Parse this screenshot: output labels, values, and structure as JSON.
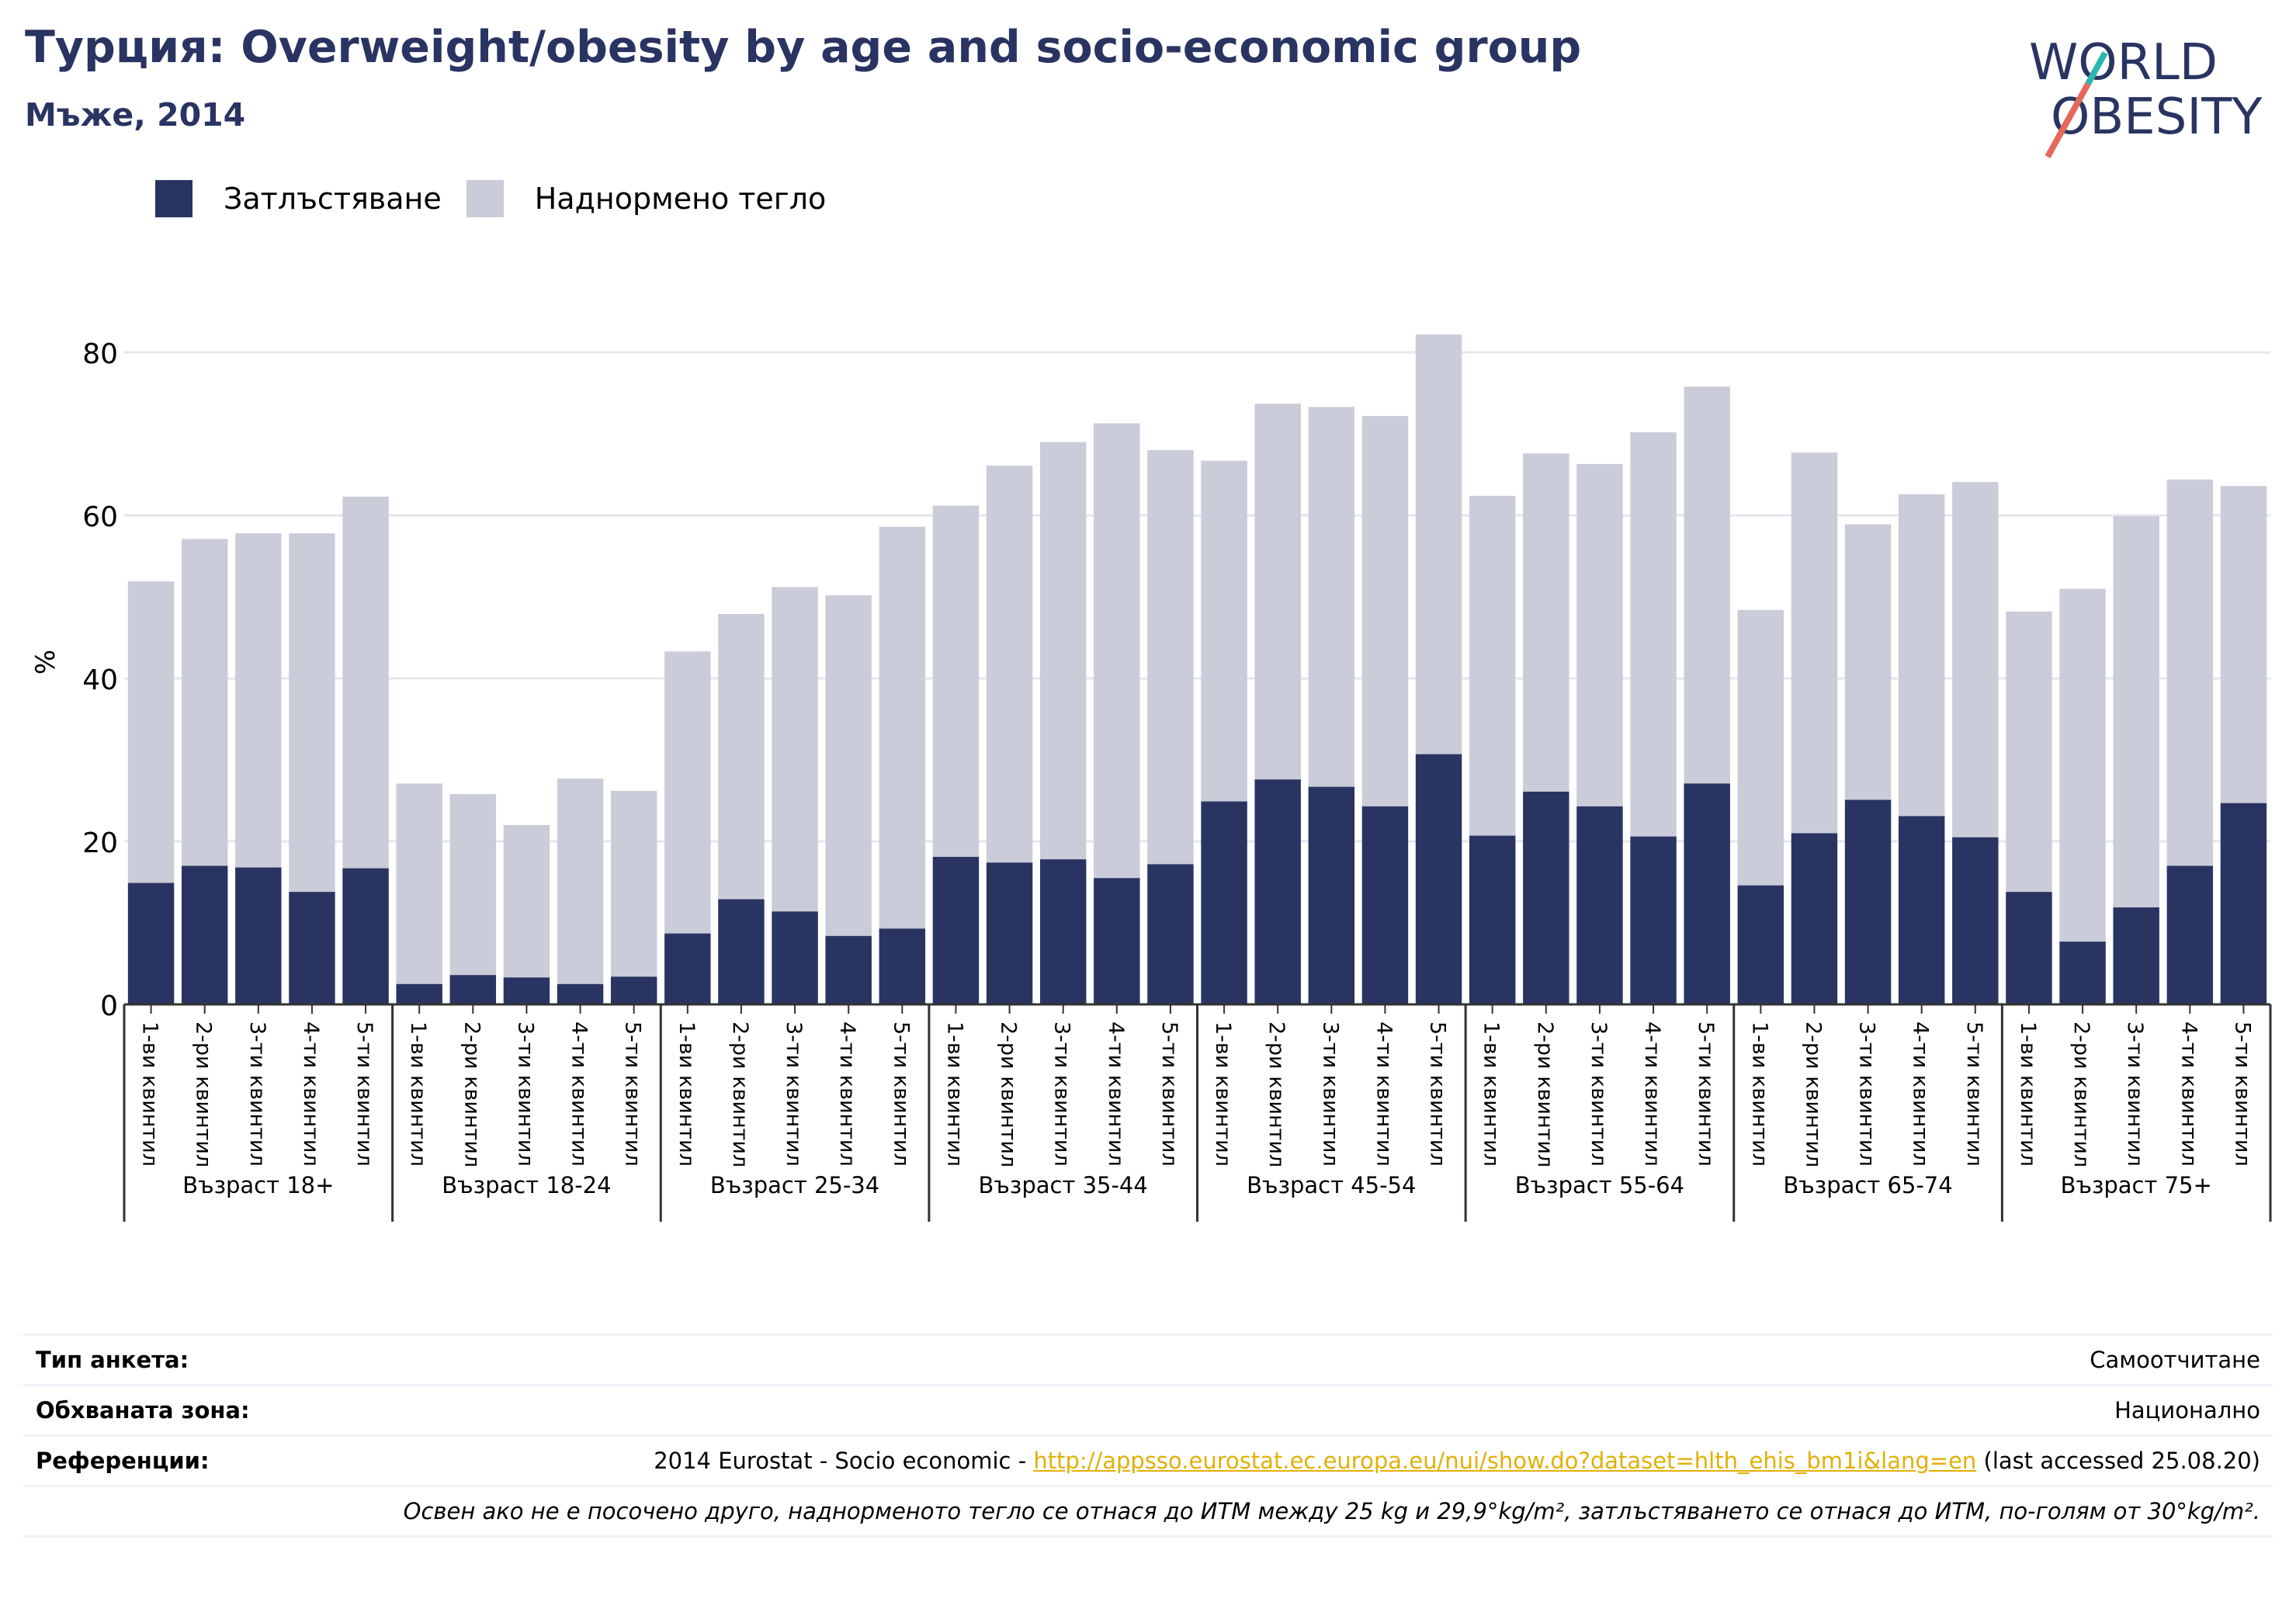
{
  "header": {
    "title": "Турция: Overweight/obesity by age and socio-economic group",
    "subtitle": "Мъже, 2014"
  },
  "logo": {
    "line1": "WORLD",
    "line2": "OBESITY"
  },
  "legend": {
    "items": [
      {
        "label": "Затлъстяване",
        "color": "#293462"
      },
      {
        "label": "Наднормено тегло",
        "color": "#cbccd9"
      }
    ]
  },
  "colors": {
    "obesity": "#293462",
    "overweight": "#cbccd9",
    "grid": "#e6e6ef",
    "axis": "#333333",
    "accent_red": "#e4685c",
    "accent_teal": "#2bb6b0",
    "link": "#e2b008"
  },
  "chart_data": {
    "type": "bar",
    "stacked": true,
    "ylabel": "%",
    "ylim": [
      0,
      84
    ],
    "yticks": [
      0,
      20,
      40,
      60,
      80
    ],
    "grid": true,
    "legend_position": "top-left",
    "quintiles": [
      "1-ви квинтил",
      "2-ри квинтил",
      "3-ти квинтил",
      "4-ти квинтил",
      "5-ти квинтил"
    ],
    "groups": [
      "Възраст 18+",
      "Възраст 18-24",
      "Възраст 25-34",
      "Възраст 35-44",
      "Възраст 45-54",
      "Възраст 55-64",
      "Възраст 65-74",
      "Възраст 75+"
    ],
    "series": [
      {
        "name": "Затлъстяване",
        "values": [
          [
            14.9,
            17.0,
            16.8,
            13.8,
            16.7
          ],
          [
            2.5,
            3.6,
            3.3,
            2.5,
            3.4
          ],
          [
            8.7,
            12.9,
            11.4,
            8.4,
            9.3
          ],
          [
            18.1,
            17.4,
            17.8,
            15.5,
            17.2
          ],
          [
            24.9,
            27.6,
            26.7,
            24.3,
            30.7
          ],
          [
            20.7,
            26.1,
            24.3,
            20.6,
            27.1
          ],
          [
            14.6,
            21.0,
            25.1,
            23.1,
            20.5
          ],
          [
            13.8,
            7.7,
            11.9,
            17.0,
            24.7
          ]
        ]
      },
      {
        "name": "Наднормено тегло",
        "values": [
          [
            37.0,
            40.1,
            41.0,
            44.0,
            45.6
          ],
          [
            24.6,
            22.2,
            18.7,
            25.2,
            22.8
          ],
          [
            34.6,
            35.0,
            39.8,
            41.8,
            49.3
          ],
          [
            43.1,
            48.7,
            51.2,
            55.8,
            50.8
          ],
          [
            41.8,
            46.1,
            46.6,
            47.9,
            51.5
          ],
          [
            41.7,
            41.5,
            42.0,
            49.6,
            48.7
          ],
          [
            33.8,
            46.7,
            33.8,
            39.5,
            43.6
          ],
          [
            34.4,
            43.3,
            48.0,
            47.4,
            38.9
          ]
        ]
      }
    ]
  },
  "footer": {
    "survey_type": {
      "label": "Тип анкета:",
      "value": "Самоотчитане"
    },
    "coverage": {
      "label": "Обхваната зона:",
      "value": "Национално"
    },
    "references": {
      "label": "Референции:",
      "prefix": "2014 Eurostat - Socio economic - ",
      "link": "http://appsso.eurostat.ec.europa.eu/nui/show.do?dataset=hlth_ehis_bm1i&lang=en",
      "suffix": " (last accessed 25.08.20)"
    },
    "note": "Освен ако не е посочено друго, наднорменото тегло се отнася до ИТМ между 25 kg и 29,9°kg/m², затлъстяването се отнася до ИТМ, по-голям от 30°kg/m²."
  }
}
